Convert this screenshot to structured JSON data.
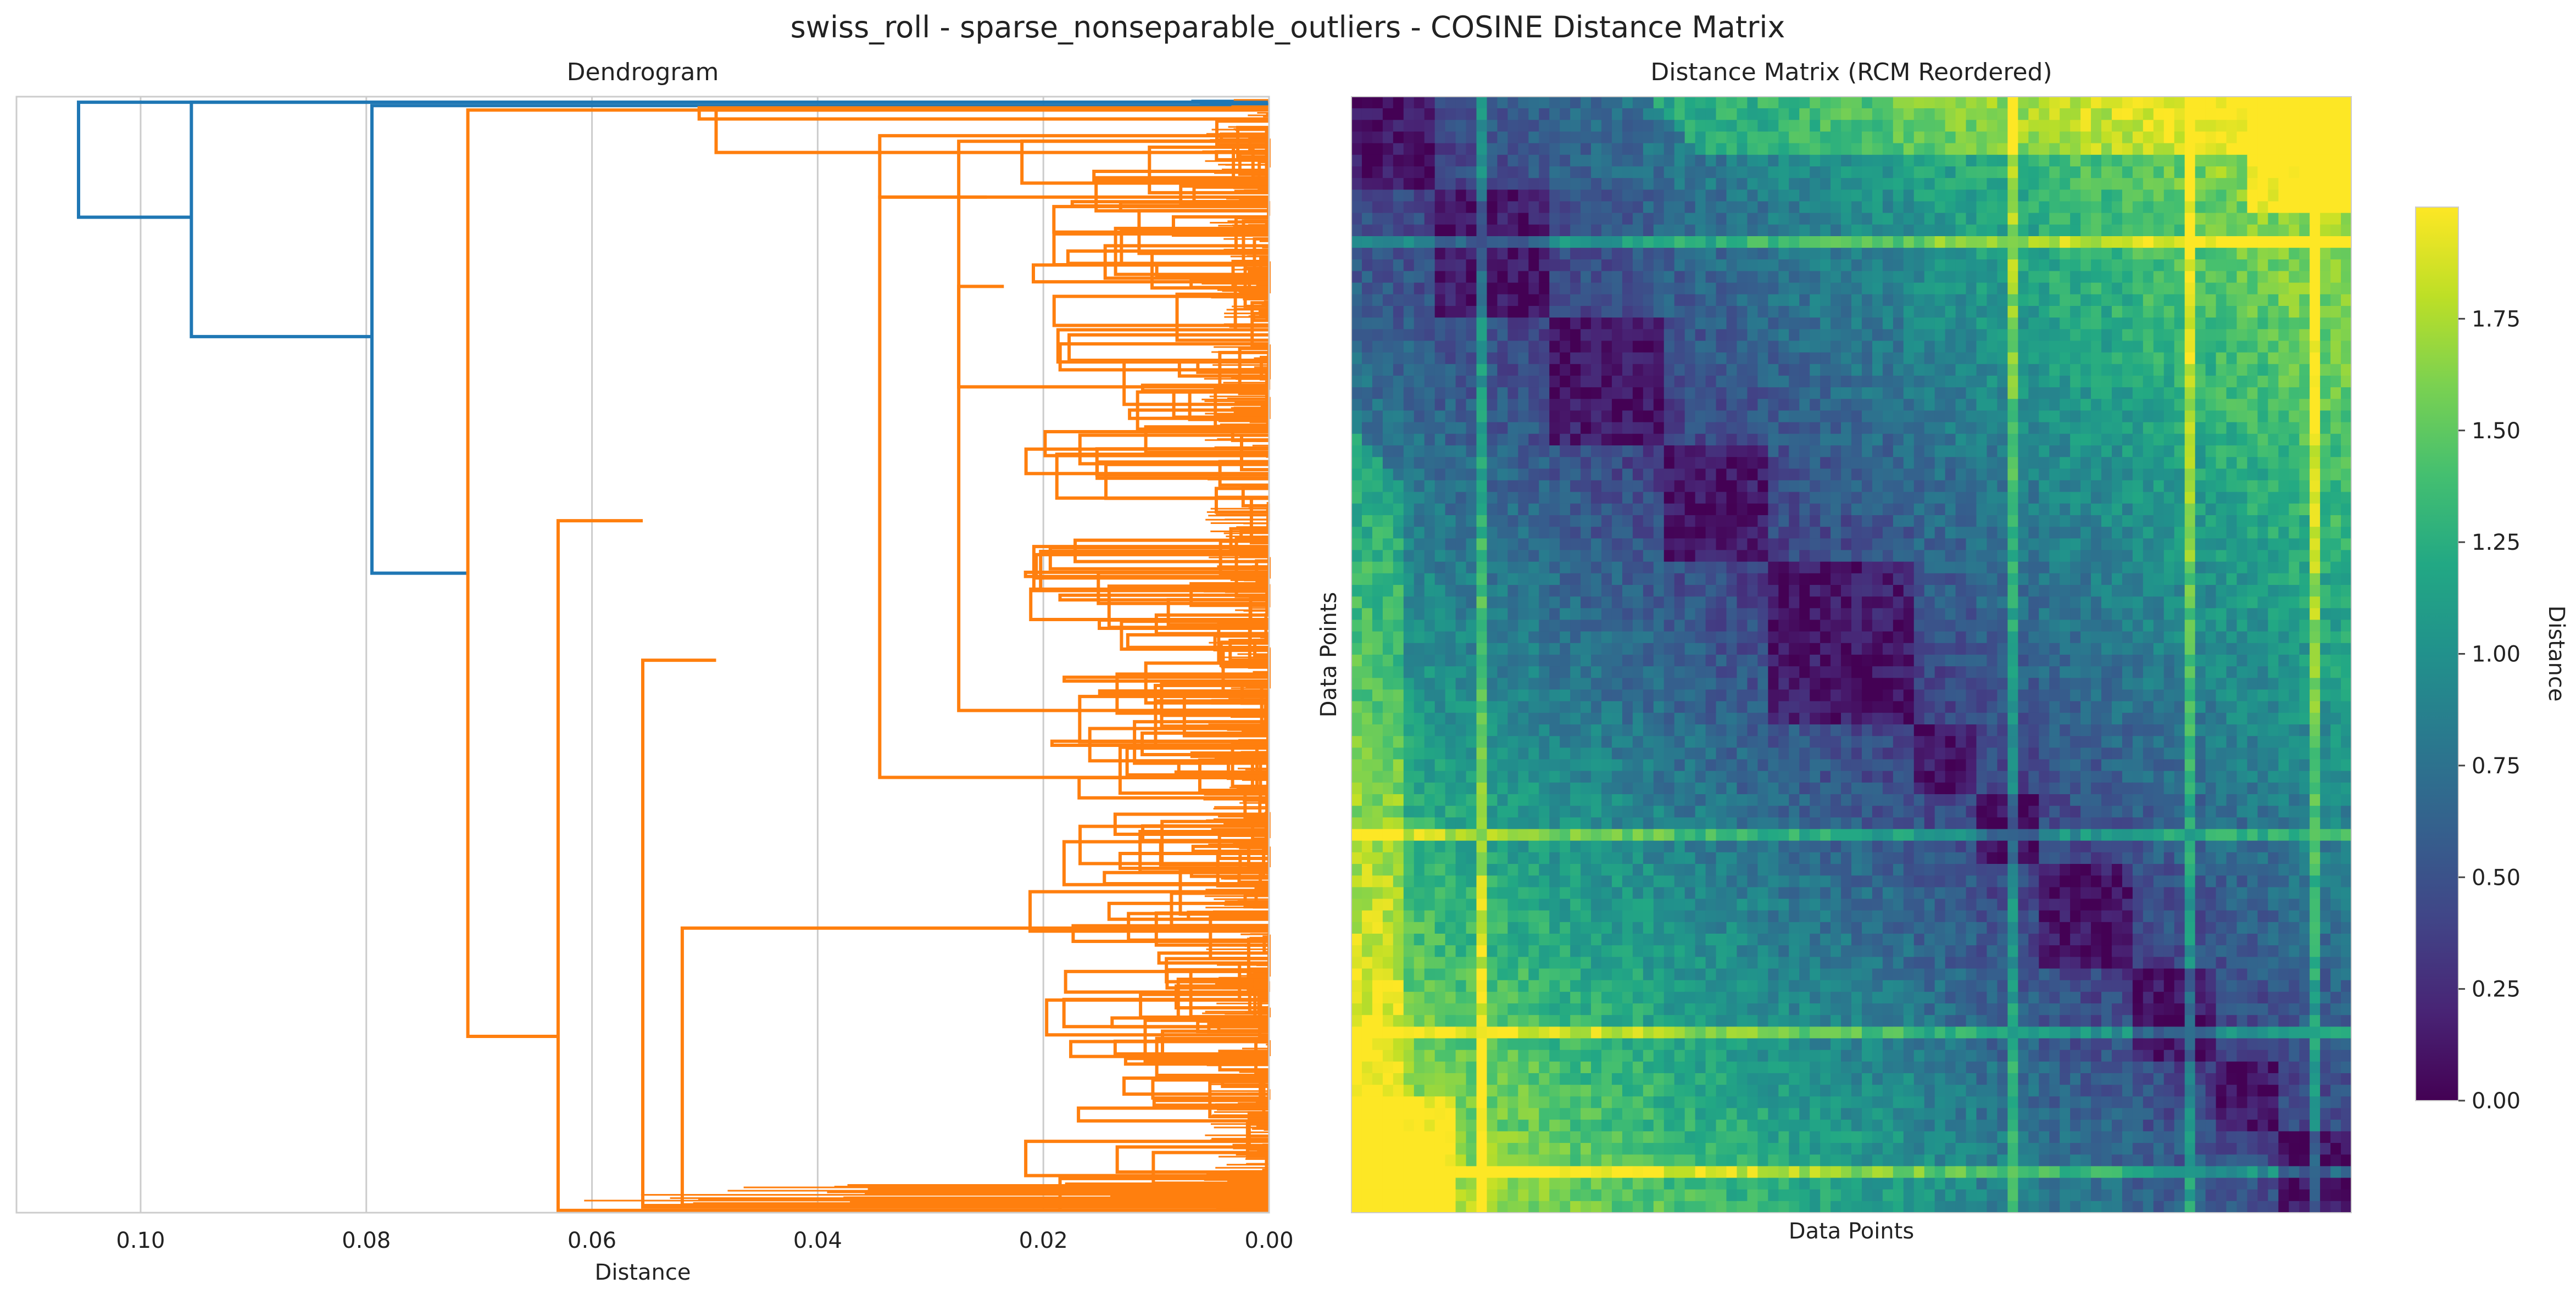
{
  "figure": {
    "suptitle": "swiss_roll - sparse_nonseparable_outliers - COSINE Distance Matrix"
  },
  "chart_data": [
    {
      "type": "dendrogram",
      "title": "Dendrogram",
      "xlabel": "Distance",
      "ylabel": "",
      "orientation": "left",
      "xlim": [
        0.111,
        0.0
      ],
      "xticks": [
        0.1,
        0.08,
        0.06,
        0.04,
        0.02,
        0.0
      ],
      "xtick_labels": [
        "0.10",
        "0.08",
        "0.06",
        "0.04",
        "0.02",
        "0.00"
      ],
      "grid": "vertical",
      "colors": {
        "above_threshold": "#1f77b4",
        "cluster": "#ff7f0e"
      },
      "top_merges": [
        {
          "height": 0.1055,
          "color": "#1f77b4",
          "joins": "outlier group vs rest"
        },
        {
          "height": 0.0955,
          "color": "#1f77b4",
          "joins": "outlier group vs rest"
        },
        {
          "height": 0.0795,
          "color": "#1f77b4",
          "joins": "outlier group vs main cluster"
        },
        {
          "height": 0.071,
          "color": "#ff7f0e",
          "joins": "main cluster split"
        },
        {
          "height": 0.063,
          "color": "#ff7f0e",
          "joins": "sub-cluster"
        },
        {
          "height": 0.0555,
          "color": "#ff7f0e",
          "joins": "sub-cluster"
        },
        {
          "height": 0.052,
          "color": "#ff7f0e",
          "joins": "sub-cluster"
        },
        {
          "height": 0.049,
          "color": "#ff7f0e",
          "joins": "sub-cluster"
        },
        {
          "height": 0.0345,
          "color": "#ff7f0e",
          "joins": "sub-cluster"
        },
        {
          "height": 0.0275,
          "color": "#ff7f0e",
          "joins": "sub-cluster"
        },
        {
          "height": 0.0235,
          "color": "#ff7f0e",
          "joins": "sub-cluster"
        }
      ]
    },
    {
      "type": "heatmap",
      "title": "Distance Matrix (RCM Reordered)",
      "xlabel": "Data Points",
      "ylabel": "Data Points",
      "colormap": "viridis",
      "vmin": 0.0,
      "vmax": 2.0,
      "colorbar": {
        "label": "Distance",
        "ticks": [
          0.0,
          0.25,
          0.5,
          0.75,
          1.0,
          1.25,
          1.5,
          1.75
        ],
        "tick_labels": [
          "0.00",
          "0.25",
          "0.50",
          "0.75",
          "1.00",
          "1.25",
          "1.50",
          "1.75"
        ]
      },
      "diagonal_blocks": [
        0.0,
        0.08,
        0.2,
        0.31,
        0.42,
        0.56,
        0.62,
        0.69,
        0.78,
        0.86,
        0.93,
        1.0
      ]
    }
  ]
}
